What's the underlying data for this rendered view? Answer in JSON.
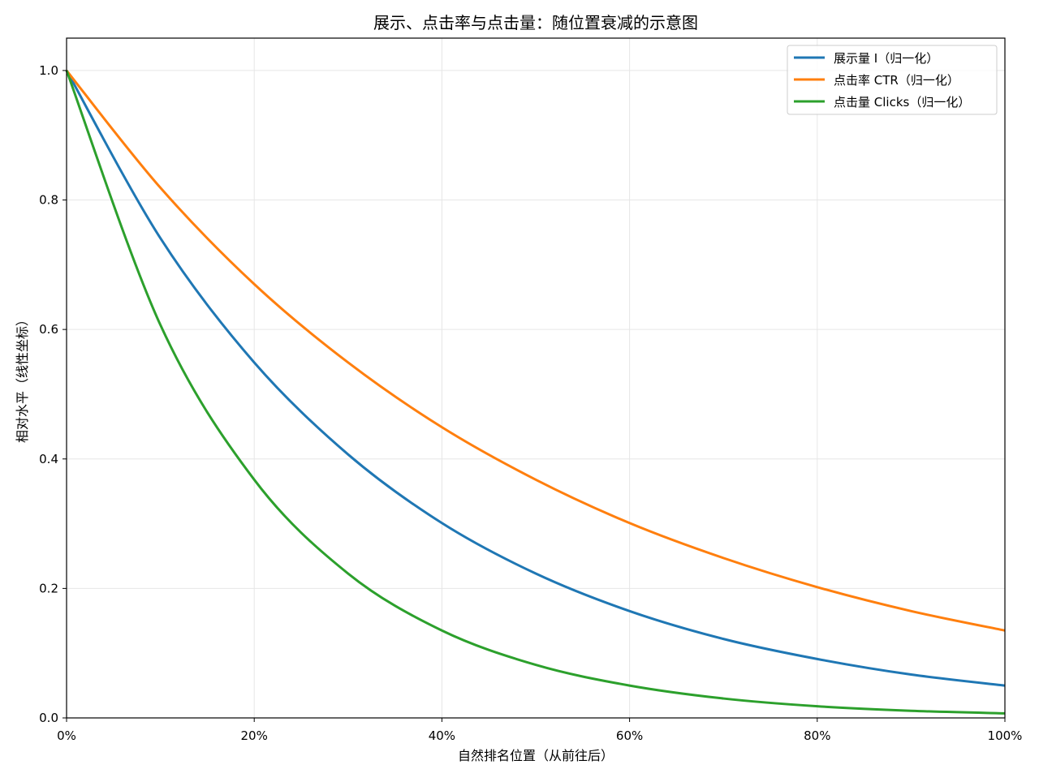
{
  "chart_data": {
    "type": "line",
    "title": "展示、点击率与点击量：随位置衰减的示意图",
    "xlabel": "自然排名位置（从前往后）",
    "ylabel": "相对水平（线性坐标）",
    "xlim": [
      0,
      100
    ],
    "ylim": [
      0,
      1.05
    ],
    "x_tick_labels": [
      "0%",
      "20%",
      "40%",
      "60%",
      "80%",
      "100%"
    ],
    "x_ticks": [
      0,
      20,
      40,
      60,
      80,
      100
    ],
    "y_tick_labels": [
      "0.0",
      "0.2",
      "0.4",
      "0.6",
      "0.8",
      "1.0"
    ],
    "y_ticks": [
      0,
      0.2,
      0.4,
      0.6,
      0.8,
      1.0
    ],
    "grid": true,
    "legend_position": "top-right",
    "x": [
      0,
      10,
      20,
      30,
      40,
      50,
      60,
      70,
      80,
      90,
      100
    ],
    "series": [
      {
        "name": "展示量 I（归一化）",
        "color": "#1f77b4",
        "values": [
          1.0,
          0.741,
          0.549,
          0.407,
          0.301,
          0.223,
          0.165,
          0.122,
          0.091,
          0.067,
          0.05
        ]
      },
      {
        "name": "点击率 CTR（归一化）",
        "color": "#ff7f0e",
        "values": [
          1.0,
          0.819,
          0.67,
          0.549,
          0.449,
          0.368,
          0.301,
          0.247,
          0.202,
          0.165,
          0.135
        ]
      },
      {
        "name": "点击量 Clicks（归一化）",
        "color": "#2ca02c",
        "values": [
          1.0,
          0.607,
          0.368,
          0.223,
          0.135,
          0.082,
          0.05,
          0.03,
          0.018,
          0.011,
          0.007
        ]
      }
    ]
  }
}
